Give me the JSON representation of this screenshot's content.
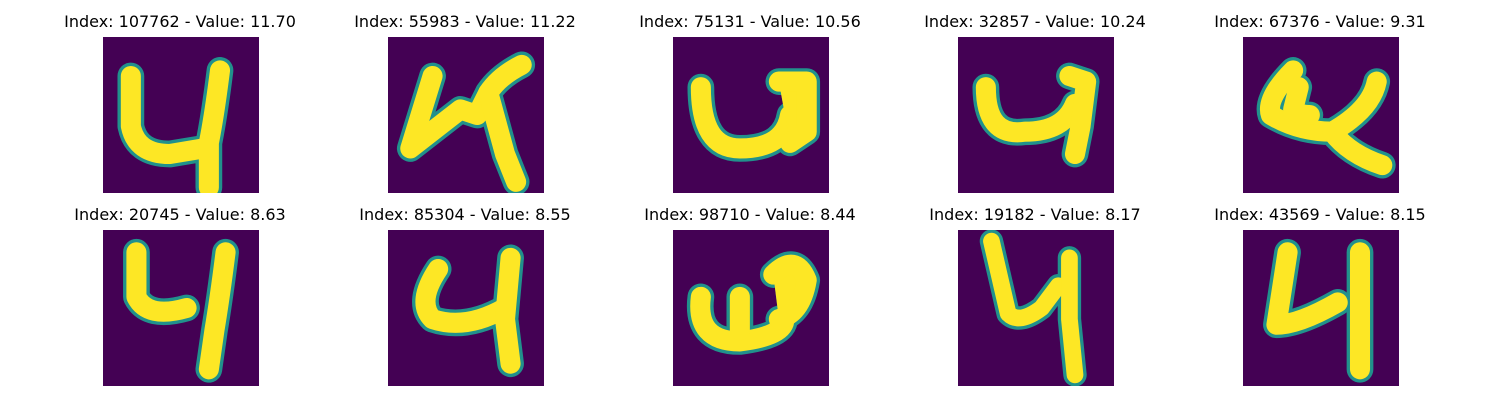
{
  "colors": {
    "background": "#440154",
    "edge": "#21918c",
    "foreground": "#fde725"
  },
  "panels": [
    {
      "title": "Index: 107762 - Value: 11.70",
      "glyph": "digit-four"
    },
    {
      "title": "Index: 55983 - Value: 11.22",
      "glyph": "digit-four"
    },
    {
      "title": "Index: 75131 - Value: 10.56",
      "glyph": "digit-four"
    },
    {
      "title": "Index: 32857 - Value: 10.24",
      "glyph": "digit-four"
    },
    {
      "title": "Index: 67376 - Value: 9.31",
      "glyph": "digit-four"
    },
    {
      "title": "Index: 20745 - Value: 8.63",
      "glyph": "digit-four"
    },
    {
      "title": "Index: 85304 - Value: 8.55",
      "glyph": "digit-four"
    },
    {
      "title": "Index: 98710 - Value: 8.44",
      "glyph": "digit-four"
    },
    {
      "title": "Index: 19182 - Value: 8.17",
      "glyph": "digit-four"
    },
    {
      "title": "Index: 43569 - Value: 8.15",
      "glyph": "digit-four"
    }
  ]
}
